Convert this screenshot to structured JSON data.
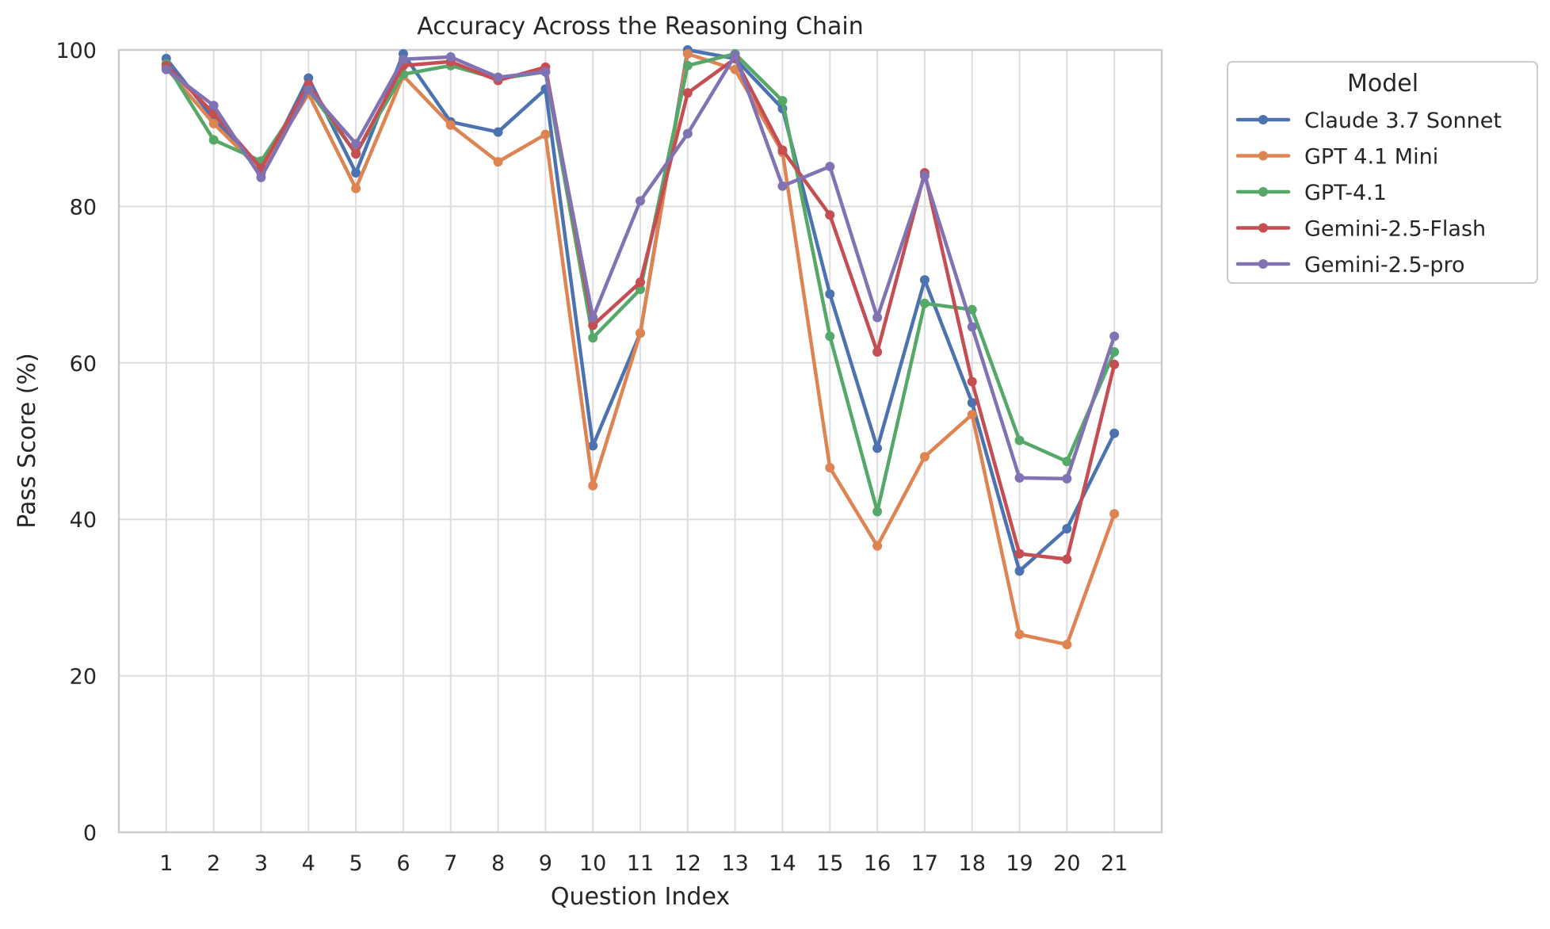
{
  "chart_data": {
    "type": "line",
    "title": "Accuracy Across the Reasoning Chain",
    "xlabel": "Question Index",
    "ylabel": "Pass Score (%)",
    "x": [
      1,
      2,
      3,
      4,
      5,
      6,
      7,
      8,
      9,
      10,
      11,
      12,
      13,
      14,
      15,
      16,
      17,
      18,
      19,
      20,
      21
    ],
    "xticks": [
      "1",
      "2",
      "3",
      "4",
      "5",
      "6",
      "7",
      "8",
      "9",
      "10",
      "11",
      "12",
      "13",
      "14",
      "15",
      "16",
      "17",
      "18",
      "19",
      "20",
      "21"
    ],
    "ylim": [
      0,
      100
    ],
    "yticks": [
      "0",
      "20",
      "40",
      "60",
      "80",
      "100"
    ],
    "grid": true,
    "legend": {
      "title": "Model",
      "placement": "outside-right-top"
    },
    "series": [
      {
        "name": "Claude 3.7 Sonnet",
        "color": "#4c72b0",
        "values": [
          98.9,
          91.2,
          84.3,
          96.4,
          84.3,
          99.5,
          90.8,
          89.5,
          95.0,
          49.4,
          63.8,
          100.0,
          98.9,
          92.5,
          68.8,
          49.1,
          70.6,
          54.9,
          33.4,
          38.8,
          51.0
        ]
      },
      {
        "name": "GPT 4.1 Mini",
        "color": "#dd8452",
        "values": [
          97.7,
          90.6,
          84.6,
          94.4,
          82.3,
          96.7,
          90.4,
          85.7,
          89.2,
          44.3,
          63.8,
          99.5,
          97.5,
          86.9,
          46.6,
          36.6,
          48.0,
          53.4,
          25.3,
          24.0,
          40.7
        ]
      },
      {
        "name": "GPT-4.1",
        "color": "#55a868",
        "values": [
          98.2,
          88.5,
          85.8,
          94.9,
          86.8,
          96.9,
          98.0,
          96.3,
          97.2,
          63.2,
          69.4,
          98.0,
          99.5,
          93.5,
          63.4,
          41.0,
          67.6,
          66.8,
          50.1,
          47.4,
          61.4
        ]
      },
      {
        "name": "Gemini-2.5-Flash",
        "color": "#c44e52",
        "values": [
          98.0,
          91.9,
          84.9,
          95.6,
          86.7,
          98.0,
          98.5,
          96.1,
          97.8,
          64.8,
          70.3,
          94.5,
          98.9,
          87.2,
          78.9,
          61.4,
          84.3,
          57.6,
          35.6,
          34.9,
          59.8
        ]
      },
      {
        "name": "Gemini-2.5-pro",
        "color": "#8172b3",
        "values": [
          97.5,
          92.9,
          83.7,
          94.9,
          88.0,
          98.8,
          99.1,
          96.5,
          97.2,
          65.8,
          80.7,
          89.3,
          99.3,
          82.6,
          85.1,
          65.8,
          83.9,
          64.6,
          45.3,
          45.2,
          63.4
        ]
      }
    ]
  }
}
